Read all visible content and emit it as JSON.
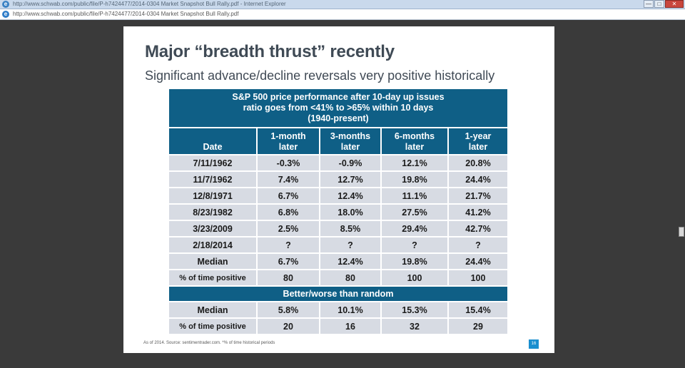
{
  "window": {
    "title": "http://www.schwab.com/public/file/P-h7424477/2014-0304 Market Snapshot Bull Rally.pdf - Internet Explorer",
    "controls": {
      "minimize": "—",
      "maximize": "□",
      "close": "✕"
    }
  },
  "addressbar": {
    "url": "http://www.schwab.com/public/file/P-h7424477/2014-0304 Market Snapshot Bull Rally.pdf"
  },
  "slide": {
    "title": "Major “breadth thrust” recently",
    "subtitle": "Significant advance/decline reversals very positive historically",
    "table": {
      "header_lines": [
        "S&P 500 price performance after 10-day up issues",
        "ratio goes from <41% to >65% within 10 days",
        "(1940-present)"
      ],
      "columns": [
        {
          "line1": "",
          "line2": "Date"
        },
        {
          "line1": "1-month",
          "line2": "later"
        },
        {
          "line1": "3-months",
          "line2": "later"
        },
        {
          "line1": "6-months",
          "line2": "later"
        },
        {
          "line1": "1-year",
          "line2": "later"
        }
      ],
      "rows": [
        [
          "7/11/1962",
          "-0.3%",
          "-0.9%",
          "12.1%",
          "20.8%"
        ],
        [
          "11/7/1962",
          "7.4%",
          "12.7%",
          "19.8%",
          "24.4%"
        ],
        [
          "12/8/1971",
          "6.7%",
          "12.4%",
          "11.1%",
          "21.7%"
        ],
        [
          "8/23/1982",
          "6.8%",
          "18.0%",
          "27.5%",
          "41.2%"
        ],
        [
          "3/23/2009",
          "2.5%",
          "8.5%",
          "29.4%",
          "42.7%"
        ],
        [
          "2/18/2014",
          "?",
          "?",
          "?",
          "?"
        ],
        [
          "Median",
          "6.7%",
          "12.4%",
          "19.8%",
          "24.4%"
        ],
        [
          "% of time positive",
          "80",
          "80",
          "100",
          "100"
        ]
      ],
      "section_header": "Better/worse than random",
      "section_rows": [
        [
          "Median",
          "5.8%",
          "10.1%",
          "15.3%",
          "15.4%"
        ],
        [
          "% of time positive",
          "20",
          "16",
          "32",
          "29"
        ]
      ]
    },
    "footer": "As of 2014. Source: sentimentrader.com. *% of time historical periods",
    "page_number": "16"
  },
  "colors": {
    "header_bg": "#0f5f86",
    "cell_bg": "#d7dbe3",
    "page_badge": "#1a8fcf"
  }
}
